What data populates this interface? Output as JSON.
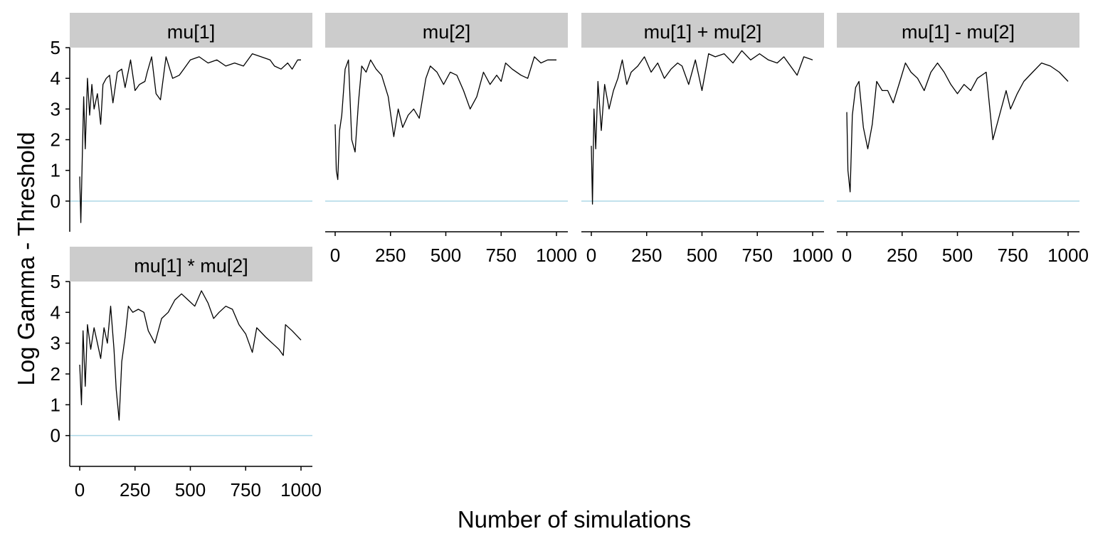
{
  "chart_data": {
    "type": "line",
    "layout": "facet-grid",
    "xlabel": "Number of simulations",
    "ylabel": "Log Gamma - Threshold",
    "xlim": [
      0,
      1000
    ],
    "ylim": [
      -1,
      5
    ],
    "x_ticks": [
      "0",
      "250",
      "500",
      "750",
      "1000"
    ],
    "y_ticks": [
      "0",
      "1",
      "2",
      "3",
      "4",
      "5"
    ],
    "grid": false,
    "reference_line": {
      "y": 0,
      "color": "#add8e6"
    },
    "line_color": "#000000",
    "strip_color": "#cccccc",
    "panels": [
      {
        "title": "mu[1]",
        "points": [
          [
            0,
            0.8
          ],
          [
            5,
            -0.7
          ],
          [
            12,
            1.5
          ],
          [
            18,
            3.4
          ],
          [
            25,
            1.7
          ],
          [
            35,
            4.0
          ],
          [
            45,
            2.8
          ],
          [
            55,
            3.8
          ],
          [
            65,
            3.0
          ],
          [
            80,
            3.5
          ],
          [
            95,
            2.5
          ],
          [
            105,
            3.8
          ],
          [
            120,
            4.0
          ],
          [
            135,
            4.1
          ],
          [
            150,
            3.2
          ],
          [
            170,
            4.2
          ],
          [
            190,
            4.3
          ],
          [
            205,
            3.7
          ],
          [
            230,
            4.6
          ],
          [
            250,
            3.6
          ],
          [
            270,
            3.8
          ],
          [
            295,
            3.9
          ],
          [
            305,
            4.2
          ],
          [
            325,
            4.7
          ],
          [
            345,
            3.5
          ],
          [
            365,
            3.3
          ],
          [
            390,
            4.7
          ],
          [
            420,
            4.0
          ],
          [
            450,
            4.1
          ],
          [
            470,
            4.3
          ],
          [
            500,
            4.6
          ],
          [
            540,
            4.7
          ],
          [
            580,
            4.5
          ],
          [
            620,
            4.6
          ],
          [
            660,
            4.4
          ],
          [
            700,
            4.5
          ],
          [
            740,
            4.4
          ],
          [
            780,
            4.8
          ],
          [
            820,
            4.7
          ],
          [
            860,
            4.6
          ],
          [
            880,
            4.4
          ],
          [
            910,
            4.3
          ],
          [
            940,
            4.5
          ],
          [
            960,
            4.3
          ],
          [
            985,
            4.6
          ],
          [
            1000,
            4.6
          ]
        ]
      },
      {
        "title": "mu[2]",
        "points": [
          [
            0,
            2.5
          ],
          [
            5,
            1.0
          ],
          [
            12,
            0.7
          ],
          [
            20,
            2.3
          ],
          [
            30,
            2.8
          ],
          [
            45,
            4.3
          ],
          [
            60,
            4.6
          ],
          [
            75,
            2.0
          ],
          [
            90,
            1.6
          ],
          [
            105,
            3.2
          ],
          [
            120,
            4.4
          ],
          [
            140,
            4.2
          ],
          [
            160,
            4.6
          ],
          [
            185,
            4.3
          ],
          [
            210,
            4.1
          ],
          [
            240,
            3.4
          ],
          [
            265,
            2.1
          ],
          [
            285,
            3.0
          ],
          [
            305,
            2.4
          ],
          [
            330,
            2.8
          ],
          [
            355,
            3.0
          ],
          [
            380,
            2.7
          ],
          [
            410,
            4.0
          ],
          [
            430,
            4.4
          ],
          [
            460,
            4.2
          ],
          [
            490,
            3.8
          ],
          [
            520,
            4.2
          ],
          [
            550,
            4.1
          ],
          [
            580,
            3.6
          ],
          [
            610,
            3.0
          ],
          [
            640,
            3.4
          ],
          [
            670,
            4.2
          ],
          [
            700,
            3.8
          ],
          [
            730,
            4.1
          ],
          [
            750,
            3.9
          ],
          [
            770,
            4.5
          ],
          [
            800,
            4.3
          ],
          [
            840,
            4.1
          ],
          [
            870,
            4.0
          ],
          [
            900,
            4.7
          ],
          [
            930,
            4.5
          ],
          [
            960,
            4.6
          ],
          [
            1000,
            4.6
          ]
        ]
      },
      {
        "title": "mu[1] + mu[2]",
        "points": [
          [
            0,
            1.8
          ],
          [
            5,
            -0.1
          ],
          [
            12,
            3.0
          ],
          [
            20,
            1.7
          ],
          [
            30,
            3.9
          ],
          [
            45,
            2.3
          ],
          [
            60,
            3.8
          ],
          [
            80,
            3.0
          ],
          [
            100,
            3.6
          ],
          [
            120,
            4.0
          ],
          [
            140,
            4.6
          ],
          [
            160,
            3.8
          ],
          [
            180,
            4.2
          ],
          [
            210,
            4.4
          ],
          [
            240,
            4.7
          ],
          [
            270,
            4.2
          ],
          [
            300,
            4.5
          ],
          [
            330,
            4.0
          ],
          [
            360,
            4.3
          ],
          [
            390,
            4.5
          ],
          [
            410,
            4.4
          ],
          [
            440,
            3.8
          ],
          [
            470,
            4.6
          ],
          [
            500,
            3.6
          ],
          [
            530,
            4.8
          ],
          [
            560,
            4.7
          ],
          [
            600,
            4.8
          ],
          [
            640,
            4.5
          ],
          [
            680,
            4.9
          ],
          [
            720,
            4.6
          ],
          [
            760,
            4.8
          ],
          [
            800,
            4.6
          ],
          [
            840,
            4.5
          ],
          [
            870,
            4.7
          ],
          [
            900,
            4.4
          ],
          [
            930,
            4.1
          ],
          [
            960,
            4.7
          ],
          [
            1000,
            4.6
          ]
        ]
      },
      {
        "title": "mu[1] - mu[2]",
        "points": [
          [
            0,
            2.9
          ],
          [
            5,
            1.0
          ],
          [
            15,
            0.3
          ],
          [
            25,
            2.8
          ],
          [
            40,
            3.7
          ],
          [
            55,
            3.9
          ],
          [
            75,
            2.4
          ],
          [
            95,
            1.7
          ],
          [
            115,
            2.5
          ],
          [
            135,
            3.9
          ],
          [
            160,
            3.6
          ],
          [
            185,
            3.6
          ],
          [
            210,
            3.2
          ],
          [
            240,
            3.9
          ],
          [
            265,
            4.5
          ],
          [
            290,
            4.2
          ],
          [
            320,
            4.0
          ],
          [
            350,
            3.6
          ],
          [
            380,
            4.2
          ],
          [
            410,
            4.5
          ],
          [
            440,
            4.2
          ],
          [
            470,
            3.8
          ],
          [
            500,
            3.5
          ],
          [
            530,
            3.8
          ],
          [
            560,
            3.6
          ],
          [
            590,
            4.0
          ],
          [
            630,
            4.2
          ],
          [
            660,
            2.0
          ],
          [
            690,
            2.8
          ],
          [
            720,
            3.6
          ],
          [
            740,
            3.0
          ],
          [
            770,
            3.5
          ],
          [
            800,
            3.9
          ],
          [
            840,
            4.2
          ],
          [
            880,
            4.5
          ],
          [
            920,
            4.4
          ],
          [
            960,
            4.2
          ],
          [
            1000,
            3.9
          ]
        ]
      },
      {
        "title": "mu[1] * mu[2]",
        "points": [
          [
            0,
            2.3
          ],
          [
            8,
            1.0
          ],
          [
            15,
            3.4
          ],
          [
            25,
            1.6
          ],
          [
            35,
            3.6
          ],
          [
            50,
            2.8
          ],
          [
            65,
            3.5
          ],
          [
            80,
            3.0
          ],
          [
            95,
            2.5
          ],
          [
            110,
            3.5
          ],
          [
            125,
            3.0
          ],
          [
            140,
            4.2
          ],
          [
            155,
            2.8
          ],
          [
            165,
            1.5
          ],
          [
            178,
            0.5
          ],
          [
            190,
            2.4
          ],
          [
            205,
            3.2
          ],
          [
            220,
            4.2
          ],
          [
            240,
            4.0
          ],
          [
            265,
            4.1
          ],
          [
            290,
            4.0
          ],
          [
            310,
            3.4
          ],
          [
            340,
            3.0
          ],
          [
            370,
            3.8
          ],
          [
            400,
            4.0
          ],
          [
            430,
            4.4
          ],
          [
            460,
            4.6
          ],
          [
            490,
            4.4
          ],
          [
            520,
            4.2
          ],
          [
            550,
            4.7
          ],
          [
            580,
            4.3
          ],
          [
            605,
            3.8
          ],
          [
            630,
            4.0
          ],
          [
            660,
            4.2
          ],
          [
            690,
            4.1
          ],
          [
            720,
            3.6
          ],
          [
            750,
            3.3
          ],
          [
            780,
            2.7
          ],
          [
            800,
            3.5
          ],
          [
            840,
            3.2
          ],
          [
            870,
            3.0
          ],
          [
            900,
            2.8
          ],
          [
            920,
            2.6
          ],
          [
            930,
            3.6
          ],
          [
            960,
            3.4
          ],
          [
            1000,
            3.1
          ]
        ]
      }
    ]
  }
}
